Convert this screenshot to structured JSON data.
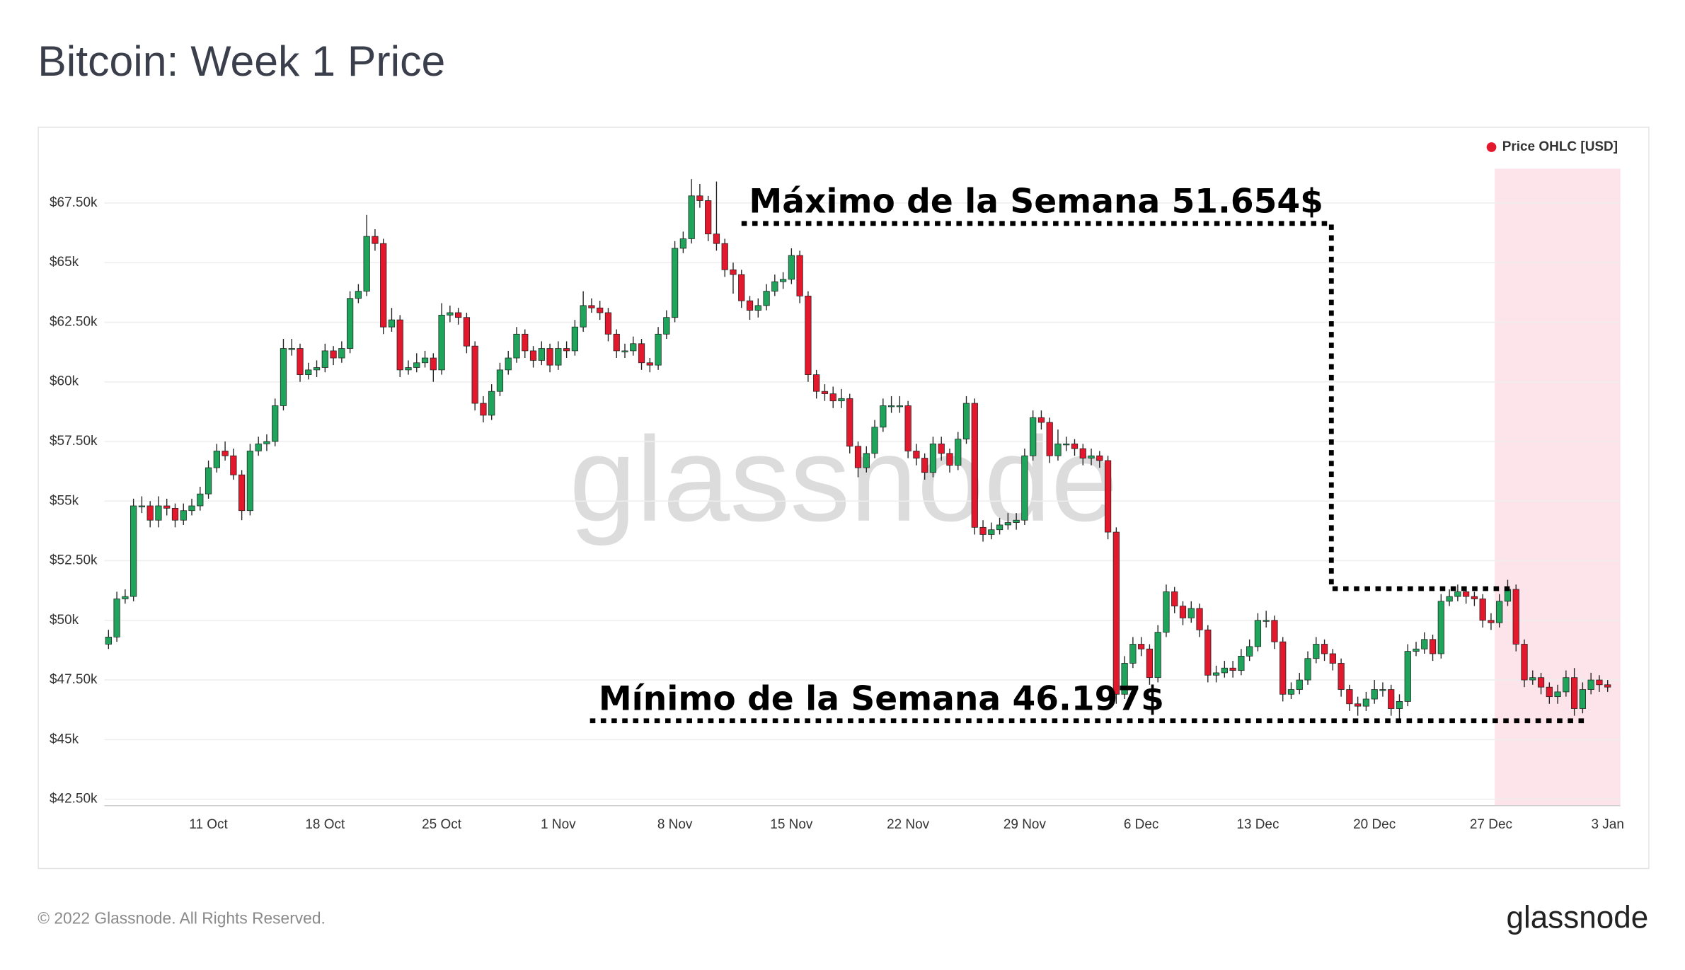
{
  "chart_data": {
    "type": "candlestick",
    "title": "Bitcoin: Week 1 Price",
    "legend_label": "Price OHLC [USD]",
    "legend_color": "#e3182d",
    "legend": "top-right",
    "up_color": "#1ea55b",
    "down_color": "#e3182d",
    "grid": true,
    "ylim": [
      42230,
      68940
    ],
    "yticks": [
      {
        "value": 42500,
        "label": "$42.50k"
      },
      {
        "value": 45000,
        "label": "$45k"
      },
      {
        "value": 47500,
        "label": "$47.50k"
      },
      {
        "value": 50000,
        "label": "$50k"
      },
      {
        "value": 52500,
        "label": "$52.50k"
      },
      {
        "value": 55000,
        "label": "$55k"
      },
      {
        "value": 57500,
        "label": "$57.50k"
      },
      {
        "value": 60000,
        "label": "$60k"
      },
      {
        "value": 62500,
        "label": "$62.50k"
      },
      {
        "value": 65000,
        "label": "$65k"
      },
      {
        "value": 67500,
        "label": "$67.50k"
      }
    ],
    "categories": [
      null,
      null,
      null,
      null,
      null,
      null,
      null,
      null,
      null,
      null,
      null,
      null,
      "11 Oct",
      null,
      null,
      null,
      null,
      null,
      null,
      null,
      null,
      null,
      null,
      null,
      null,
      null,
      "18 Oct",
      null,
      null,
      null,
      null,
      null,
      null,
      null,
      null,
      null,
      null,
      null,
      null,
      null,
      "25 Oct",
      null,
      null,
      null,
      null,
      null,
      null,
      null,
      null,
      null,
      null,
      null,
      null,
      null,
      "1 Nov",
      null,
      null,
      null,
      null,
      null,
      null,
      null,
      null,
      null,
      null,
      null,
      null,
      null,
      "8 Nov",
      null,
      null,
      null,
      null,
      null,
      null,
      null,
      null,
      null,
      null,
      null,
      null,
      null,
      "15 Nov",
      null,
      null,
      null,
      null,
      null,
      null,
      null,
      null,
      null,
      null,
      null,
      null,
      null,
      "22 Nov",
      null,
      null,
      null,
      null,
      null,
      null,
      null,
      null,
      null,
      null,
      null,
      null,
      null,
      "29 Nov",
      null,
      null,
      null,
      null,
      null,
      null,
      null,
      null,
      null,
      null,
      null,
      null,
      null,
      "6 Dec",
      null,
      null,
      null,
      null,
      null,
      null,
      null,
      null,
      null,
      null,
      null,
      null,
      null,
      "13 Dec",
      null,
      null,
      null,
      null,
      null,
      null,
      null,
      null,
      null,
      null,
      null,
      null,
      null,
      "20 Dec",
      null,
      null,
      null,
      null,
      null,
      null,
      null,
      null,
      null,
      null,
      null,
      null,
      null,
      "27 Dec",
      null,
      null,
      null,
      null,
      null,
      null,
      null,
      null,
      null,
      null,
      null,
      null,
      null,
      "3 Jan"
    ],
    "open": [
      49000,
      49300,
      50900,
      51000,
      54800,
      54800,
      54200,
      54800,
      54700,
      54200,
      54600,
      54800,
      55300,
      56400,
      57100,
      56900,
      56100,
      54600,
      57100,
      57400,
      57500,
      59000,
      61400,
      61400,
      60300,
      60500,
      60600,
      61300,
      61000,
      61400,
      63500,
      63800,
      66100,
      65800,
      62300,
      62600,
      60500,
      60600,
      60800,
      61000,
      60500,
      62800,
      62900,
      62700,
      61500,
      59100,
      58600,
      59600,
      60500,
      61000,
      62000,
      61300,
      60900,
      61400,
      60700,
      61400,
      61300,
      62300,
      63200,
      63100,
      62900,
      62000,
      61300,
      61300,
      61600,
      60800,
      60700,
      62000,
      62700,
      65600,
      66000,
      67800,
      67600,
      66200,
      65800,
      64700,
      64500,
      63400,
      63000,
      63200,
      63800,
      64200,
      64300,
      65300,
      63600,
      60300,
      59600,
      59500,
      59200,
      59300,
      57300,
      56400,
      57000,
      58100,
      59000,
      59000,
      59000,
      57100,
      56800,
      56200,
      57400,
      57000,
      56500,
      57600,
      59100,
      53900,
      53600,
      53800,
      54000,
      54100,
      54200,
      56900,
      58500,
      58300,
      56900,
      57400,
      57400,
      57200,
      56800,
      56900,
      56700,
      53700,
      46900,
      48200,
      49000,
      48800,
      47600,
      49500,
      51200,
      50600,
      50100,
      50500,
      49600,
      47700,
      47800,
      48000,
      47900,
      48500,
      48900,
      50000,
      50000,
      49100,
      46900,
      47100,
      47500,
      48400,
      49000,
      48600,
      48200,
      47100,
      46500,
      46400,
      46700,
      47100,
      47100,
      46300,
      46600,
      48700,
      48800,
      49200,
      48600,
      50800,
      51000,
      51200,
      51000,
      50900,
      50000,
      49900,
      50800,
      51300,
      49000,
      47500,
      47600,
      47200,
      46800,
      47000,
      47600,
      46300,
      47100,
      47500,
      47300
    ],
    "high": [
      49600,
      51200,
      51300,
      55100,
      55200,
      55000,
      55200,
      55100,
      54900,
      54900,
      55100,
      55600,
      56700,
      57400,
      57500,
      57200,
      56300,
      57400,
      57700,
      57800,
      59300,
      61800,
      61800,
      61600,
      60800,
      60900,
      61600,
      61500,
      61700,
      63800,
      64100,
      67000,
      66400,
      66000,
      63100,
      62800,
      60900,
      61200,
      61300,
      61200,
      63300,
      63200,
      63100,
      62900,
      61700,
      59400,
      59900,
      60800,
      61300,
      62300,
      62200,
      61500,
      61700,
      61600,
      61700,
      61700,
      62600,
      63800,
      63500,
      63400,
      63100,
      62200,
      61600,
      61900,
      61800,
      61000,
      62300,
      63000,
      65900,
      66300,
      68500,
      68300,
      67800,
      68400,
      66000,
      65000,
      64700,
      63600,
      63500,
      64100,
      64500,
      64600,
      65600,
      65500,
      63800,
      60500,
      59900,
      59800,
      59700,
      59500,
      57500,
      57300,
      58400,
      59300,
      59400,
      59400,
      59200,
      57400,
      57000,
      57700,
      57700,
      57200,
      57900,
      59400,
      59300,
      54200,
      54100,
      54300,
      54500,
      54500,
      57200,
      58800,
      58800,
      58500,
      58000,
      57700,
      57600,
      57400,
      57200,
      57100,
      56900,
      53900,
      48500,
      49300,
      49300,
      49000,
      49800,
      51500,
      51400,
      50800,
      50800,
      50700,
      49800,
      48100,
      48300,
      48300,
      48800,
      49200,
      50300,
      50400,
      50200,
      49300,
      47400,
      47800,
      48700,
      49300,
      49200,
      48800,
      48400,
      47300,
      46800,
      47000,
      47500,
      47400,
      47300,
      46900,
      49000,
      49100,
      49500,
      49400,
      51100,
      51300,
      51500,
      51400,
      51200,
      51100,
      50300,
      51100,
      51700,
      51500,
      49200,
      47900,
      47800,
      47400,
      47300,
      47900,
      48000,
      47400,
      47800,
      47700,
      47500
    ],
    "low": [
      48800,
      49100,
      50700,
      50800,
      54500,
      53900,
      53900,
      54400,
      53900,
      54000,
      54400,
      54600,
      55100,
      56200,
      56700,
      55900,
      54200,
      54400,
      56900,
      57100,
      57300,
      58800,
      61100,
      60000,
      60100,
      60200,
      60400,
      60700,
      60800,
      61200,
      63300,
      63600,
      65500,
      62000,
      62100,
      60200,
      60300,
      60400,
      60600,
      60000,
      60300,
      62500,
      62400,
      61200,
      58800,
      58300,
      58400,
      59400,
      60300,
      60800,
      61000,
      60600,
      60700,
      60400,
      60500,
      61000,
      61100,
      62100,
      62900,
      62600,
      61700,
      61000,
      61000,
      61100,
      60500,
      60400,
      60500,
      61800,
      62500,
      65400,
      65800,
      67300,
      65900,
      65500,
      64400,
      63700,
      63100,
      62600,
      62700,
      63000,
      63600,
      63900,
      64100,
      63300,
      60000,
      59300,
      59200,
      58900,
      58900,
      57000,
      56000,
      56200,
      56800,
      57900,
      58700,
      58700,
      56800,
      56500,
      55900,
      56000,
      56700,
      56200,
      56300,
      57400,
      53600,
      53300,
      53400,
      53600,
      53800,
      53800,
      54000,
      56700,
      58000,
      56600,
      56700,
      57100,
      56900,
      56500,
      56500,
      56400,
      53400,
      46500,
      46700,
      48000,
      48500,
      47300,
      47400,
      49300,
      50300,
      49800,
      49900,
      49300,
      47400,
      47400,
      47600,
      47600,
      47700,
      48300,
      48700,
      49700,
      48800,
      46600,
      46700,
      46900,
      47300,
      48200,
      48300,
      47900,
      46800,
      46200,
      46000,
      46200,
      46500,
      46800,
      46000,
      45800,
      46400,
      48500,
      48600,
      48300,
      48400,
      50600,
      50800,
      50700,
      50600,
      49700,
      49600,
      49700,
      50600,
      48700,
      47200,
      47300,
      46900,
      46500,
      46500,
      46800,
      46000,
      46100,
      46900,
      47000,
      47000
    ],
    "close": [
      49300,
      50900,
      51000,
      54800,
      54800,
      54200,
      54800,
      54700,
      54200,
      54600,
      54800,
      55300,
      56400,
      57100,
      56900,
      56100,
      54600,
      57100,
      57400,
      57500,
      59000,
      61400,
      61400,
      60300,
      60500,
      60600,
      61300,
      61000,
      61400,
      63500,
      63800,
      66100,
      65800,
      62300,
      62600,
      60500,
      60600,
      60800,
      61000,
      60500,
      62800,
      62900,
      62700,
      61500,
      59100,
      58600,
      59600,
      60500,
      61000,
      62000,
      61300,
      60900,
      61400,
      60700,
      61400,
      61300,
      62300,
      63200,
      63100,
      62900,
      62000,
      61300,
      61300,
      61600,
      60800,
      60700,
      62000,
      62700,
      65600,
      66000,
      67800,
      67600,
      66200,
      65800,
      64700,
      64500,
      63400,
      63000,
      63200,
      63800,
      64200,
      64300,
      65300,
      63600,
      60300,
      59600,
      59500,
      59200,
      59300,
      57300,
      56400,
      57000,
      58100,
      59000,
      59000,
      59000,
      57100,
      56800,
      56200,
      57400,
      57000,
      56500,
      57600,
      59100,
      53900,
      53600,
      53800,
      54000,
      54100,
      54200,
      56900,
      58500,
      58300,
      56900,
      57400,
      57400,
      57200,
      56800,
      56900,
      56700,
      53700,
      46900,
      48200,
      49000,
      48800,
      47600,
      49500,
      51200,
      50600,
      50100,
      50500,
      49600,
      47700,
      47800,
      48000,
      47900,
      48500,
      48900,
      50000,
      50000,
      49100,
      46900,
      47100,
      47500,
      48400,
      49000,
      48600,
      48200,
      47100,
      46500,
      46400,
      46700,
      47100,
      47100,
      46300,
      46600,
      48700,
      48800,
      49200,
      48600,
      50800,
      51000,
      51200,
      51000,
      50900,
      50000,
      49900,
      50800,
      51300,
      49000,
      47500,
      47600,
      47200,
      46800,
      47000,
      47600,
      46300,
      47100,
      47500,
      47300,
      47200
    ],
    "annotations": [
      "Máximo de la Semana 51.654$",
      "Mínimo de la Semana 46.197$"
    ],
    "watermark": "glassnode"
  },
  "footer": {
    "copyright": "© 2022 Glassnode. All Rights Reserved.",
    "logo": "glassnode"
  }
}
